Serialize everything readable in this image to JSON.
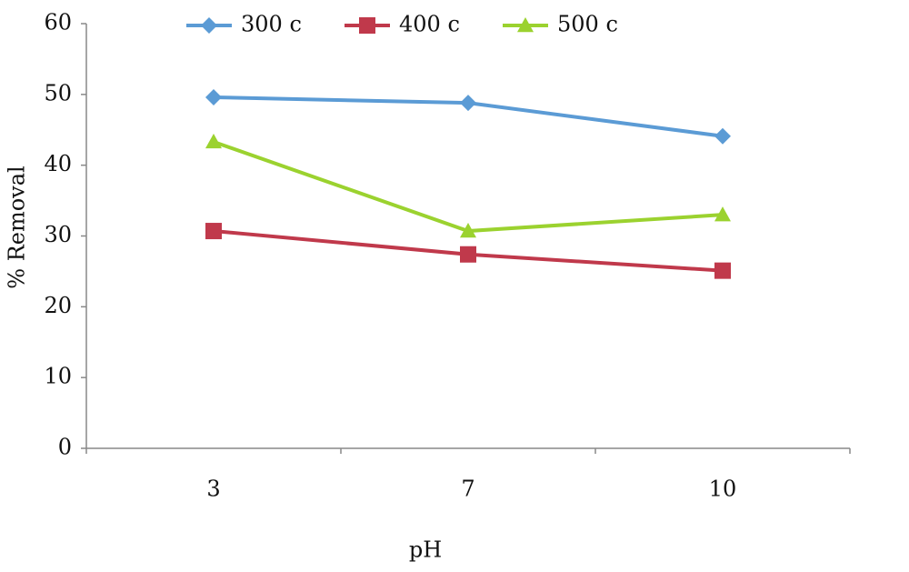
{
  "chart_data": {
    "type": "line",
    "x_label": "pH",
    "y_label": "% Removal",
    "categories": [
      "3",
      "7",
      "10"
    ],
    "series": [
      {
        "name": "300 c",
        "color": "#5b9bd5",
        "marker": "diamond",
        "values": [
          49.6,
          48.8,
          44.1
        ]
      },
      {
        "name": "400 c",
        "color": "#c0394b",
        "marker": "square",
        "values": [
          30.7,
          27.4,
          25.1
        ]
      },
      {
        "name": "500 c",
        "color": "#9bd22f",
        "marker": "triangle",
        "values": [
          43.3,
          30.7,
          33.0
        ]
      }
    ],
    "ylim": [
      0,
      60
    ],
    "yticks": [
      0,
      10,
      20,
      30,
      40,
      50,
      60
    ],
    "grid": false,
    "legend": "top"
  }
}
